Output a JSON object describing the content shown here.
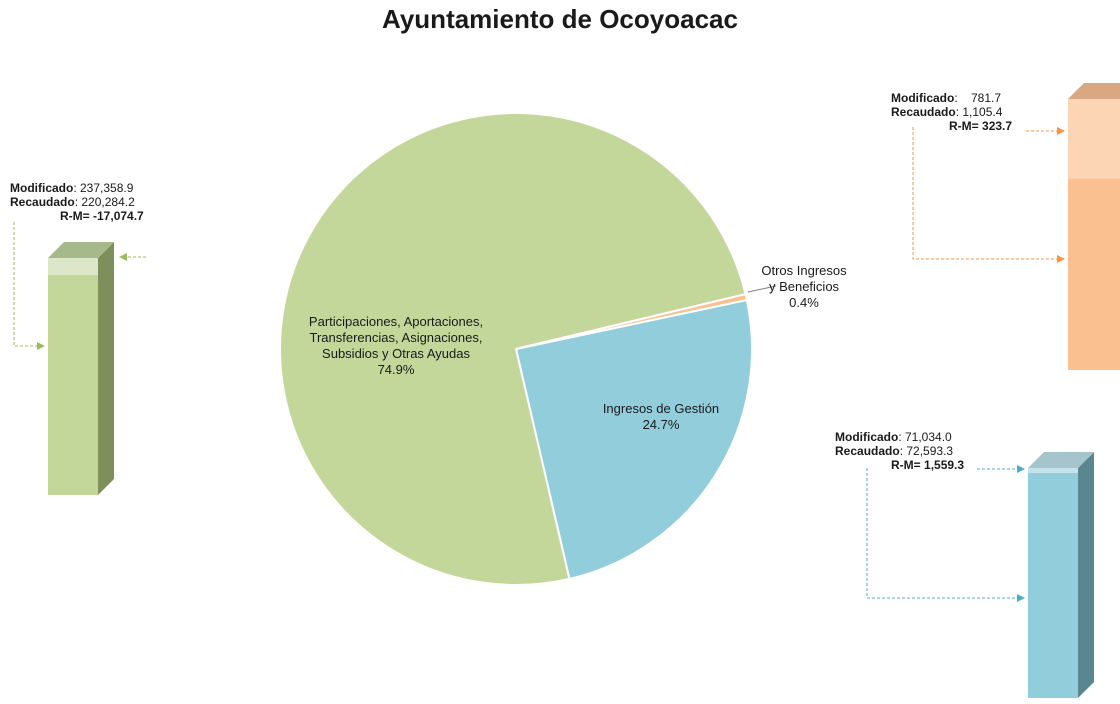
{
  "title": "Ayuntamiento de Ocoyoacac",
  "chart_data": {
    "type": "pie",
    "slices": [
      {
        "label_lines": [
          "Participaciones, Aportaciones,",
          "Transferencias, Asignaciones,",
          "Subsidios y Otras Ayudas"
        ],
        "pct_label": "74.9%",
        "value": 74.9,
        "color": "#c4d79b"
      },
      {
        "label_lines": [
          "Ingresos de Gestión"
        ],
        "pct_label": "24.7%",
        "value": 24.7,
        "color": "#92cddc"
      },
      {
        "label_lines": [
          "Otros Ingresos",
          "y Beneficios"
        ],
        "pct_label": "0.4%",
        "value": 0.4,
        "color": "#fac090"
      }
    ],
    "bars": [
      {
        "modificado_label": "Modificado",
        "modificado": "237,358.9",
        "recaudado_label": "Recaudado",
        "recaudado": "220,284.2",
        "rm_label": "R-M=",
        "rm": "-17,074.7",
        "color": "#c4d79b",
        "value_modificado": 237358.9,
        "value_recaudado": 220284.2
      },
      {
        "modificado_label": "Modificado",
        "modificado": "781.7",
        "recaudado_label": "Recaudado",
        "recaudado": "1,105.4",
        "rm_label": "R-M=",
        "rm": "323.7",
        "color": "#fac090",
        "value_modificado": 781.7,
        "value_recaudado": 1105.4
      },
      {
        "modificado_label": "Modificado",
        "modificado": "71,034.0",
        "recaudado_label": "Recaudado",
        "recaudado": "72,593.3",
        "rm_label": "R-M=",
        "rm": "1,559.3",
        "color": "#92cddc",
        "value_modificado": 71034.0,
        "value_recaudado": 72593.3
      }
    ]
  }
}
